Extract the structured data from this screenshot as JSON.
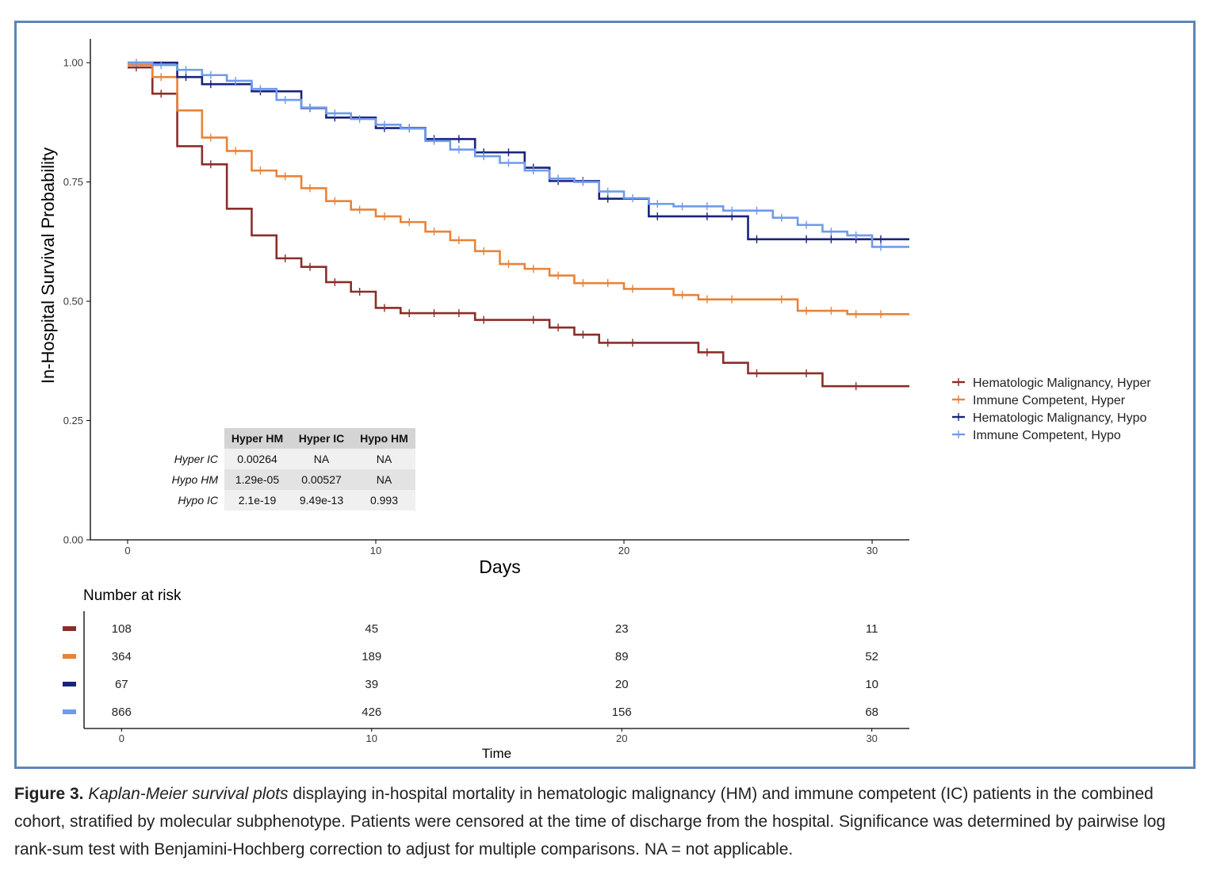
{
  "chart_data": {
    "type": "line",
    "subtype": "kaplan-meier-step",
    "ylabel": "In-Hospital Survival Probability",
    "xlabel": "Days",
    "xlim": [
      -1.5,
      31.5
    ],
    "ylim": [
      0,
      1.05
    ],
    "x_ticks": [
      0,
      10,
      20,
      30
    ],
    "y_ticks": [
      0,
      0.25,
      0.5,
      0.75,
      1.0
    ],
    "y_tick_labels": [
      "0.00",
      "0.25",
      "0.50",
      "0.75",
      "1.00"
    ],
    "grid": false,
    "legend_position": "right",
    "series": [
      {
        "name": "Hematologic Malignancy, Hyper",
        "color": "#8b2e2a",
        "steps": [
          [
            0,
            0.99
          ],
          [
            1,
            0.935
          ],
          [
            2,
            0.825
          ],
          [
            3,
            0.787
          ],
          [
            4,
            0.694
          ],
          [
            5,
            0.638
          ],
          [
            6,
            0.59
          ],
          [
            7,
            0.572
          ],
          [
            8,
            0.54
          ],
          [
            9,
            0.52
          ],
          [
            10,
            0.486
          ],
          [
            11,
            0.475
          ],
          [
            14,
            0.461
          ],
          [
            17,
            0.445
          ],
          [
            18,
            0.43
          ],
          [
            19,
            0.413
          ],
          [
            23,
            0.393
          ],
          [
            24,
            0.371
          ],
          [
            25,
            0.349
          ],
          [
            28,
            0.322
          ],
          [
            31.5,
            0.322
          ]
        ],
        "censors": [
          0,
          1,
          3,
          6,
          7,
          8,
          9,
          10,
          11,
          12,
          13,
          14,
          16,
          17,
          18,
          19,
          20,
          23,
          25,
          27,
          29
        ]
      },
      {
        "name": "Immune Competent, Hyper",
        "color": "#e8833a",
        "steps": [
          [
            0,
            0.995
          ],
          [
            1,
            0.97
          ],
          [
            2,
            0.9
          ],
          [
            3,
            0.843
          ],
          [
            4,
            0.815
          ],
          [
            5,
            0.774
          ],
          [
            6,
            0.762
          ],
          [
            7,
            0.737
          ],
          [
            8,
            0.71
          ],
          [
            9,
            0.692
          ],
          [
            10,
            0.678
          ],
          [
            11,
            0.666
          ],
          [
            12,
            0.646
          ],
          [
            13,
            0.628
          ],
          [
            14,
            0.605
          ],
          [
            15,
            0.578
          ],
          [
            16,
            0.568
          ],
          [
            17,
            0.554
          ],
          [
            18,
            0.538
          ],
          [
            20,
            0.526
          ],
          [
            22,
            0.513
          ],
          [
            23,
            0.504
          ],
          [
            27,
            0.48
          ],
          [
            29,
            0.473
          ],
          [
            31.5,
            0.473
          ]
        ],
        "censors": [
          1,
          3,
          4,
          5,
          6,
          7,
          8,
          9,
          10,
          11,
          12,
          13,
          14,
          15,
          16,
          17,
          18,
          19,
          20,
          22,
          23,
          24,
          26,
          27,
          28,
          29,
          30
        ]
      },
      {
        "name": "Hematologic Malignancy, Hypo",
        "color": "#1a237e",
        "steps": [
          [
            0,
            1.0
          ],
          [
            2,
            0.97
          ],
          [
            3,
            0.955
          ],
          [
            5,
            0.94
          ],
          [
            7,
            0.905
          ],
          [
            8,
            0.885
          ],
          [
            10,
            0.863
          ],
          [
            12,
            0.84
          ],
          [
            14,
            0.812
          ],
          [
            16,
            0.78
          ],
          [
            17,
            0.752
          ],
          [
            19,
            0.715
          ],
          [
            21,
            0.678
          ],
          [
            25,
            0.63
          ],
          [
            31.5,
            0.63
          ]
        ],
        "censors": [
          2,
          3,
          5,
          7,
          8,
          10,
          11,
          12,
          13,
          14,
          15,
          16,
          17,
          18,
          19,
          21,
          23,
          24,
          25,
          27,
          28,
          29,
          30
        ]
      },
      {
        "name": "Immune Competent, Hypo",
        "color": "#6f9be8",
        "steps": [
          [
            0,
            1.0
          ],
          [
            1,
            0.995
          ],
          [
            2,
            0.985
          ],
          [
            3,
            0.974
          ],
          [
            4,
            0.962
          ],
          [
            5,
            0.945
          ],
          [
            6,
            0.922
          ],
          [
            7,
            0.906
          ],
          [
            8,
            0.894
          ],
          [
            9,
            0.882
          ],
          [
            10,
            0.87
          ],
          [
            11,
            0.862
          ],
          [
            12,
            0.836
          ],
          [
            13,
            0.818
          ],
          [
            14,
            0.804
          ],
          [
            15,
            0.79
          ],
          [
            16,
            0.774
          ],
          [
            17,
            0.757
          ],
          [
            18,
            0.75
          ],
          [
            19,
            0.73
          ],
          [
            20,
            0.716
          ],
          [
            21,
            0.704
          ],
          [
            22,
            0.699
          ],
          [
            24,
            0.69
          ],
          [
            26,
            0.675
          ],
          [
            27,
            0.66
          ],
          [
            28,
            0.646
          ],
          [
            29,
            0.638
          ],
          [
            30,
            0.614
          ],
          [
            31.5,
            0.614
          ]
        ],
        "censors": [
          0,
          1,
          2,
          3,
          4,
          5,
          6,
          7,
          8,
          9,
          10,
          11,
          12,
          13,
          14,
          15,
          16,
          17,
          18,
          19,
          20,
          21,
          22,
          23,
          24,
          25,
          26,
          27,
          28,
          29,
          30
        ]
      }
    ],
    "pvalue_table": {
      "columns": [
        "Hyper HM",
        "Hyper IC",
        "Hypo HM"
      ],
      "rows": [
        {
          "label": "Hyper IC",
          "cells": [
            "0.00264",
            "NA",
            "NA"
          ]
        },
        {
          "label": "Hypo HM",
          "cells": [
            "1.29e-05",
            "0.00527",
            "NA"
          ]
        },
        {
          "label": "Hypo IC",
          "cells": [
            "2.1e-19",
            "9.49e-13",
            "0.993"
          ]
        }
      ]
    },
    "risk_table": {
      "title": "Number at risk",
      "xlabel": "Time",
      "times": [
        0,
        10,
        20,
        30
      ],
      "rows": [
        {
          "color": "#8b2e2a",
          "values": [
            "108",
            "45",
            "23",
            "11"
          ]
        },
        {
          "color": "#e8833a",
          "values": [
            "364",
            "189",
            "89",
            "52"
          ]
        },
        {
          "color": "#1a237e",
          "values": [
            "67",
            "39",
            "20",
            "10"
          ]
        },
        {
          "color": "#6f9be8",
          "values": [
            "866",
            "426",
            "156",
            "68"
          ]
        }
      ]
    }
  },
  "caption": {
    "label": "Figure 3.",
    "title": "Kaplan-Meier survival plots",
    "body": " displaying in-hospital mortality in hematologic malignancy (HM) and immune competent (IC) patients in the combined cohort, stratified by molecular subphenotype. Patients were censored at the time of discharge from the hospital. Significance was determined by pairwise log rank-sum test with Benjamini-Hochberg correction to adjust for multiple comparisons. NA = not applicable."
  }
}
